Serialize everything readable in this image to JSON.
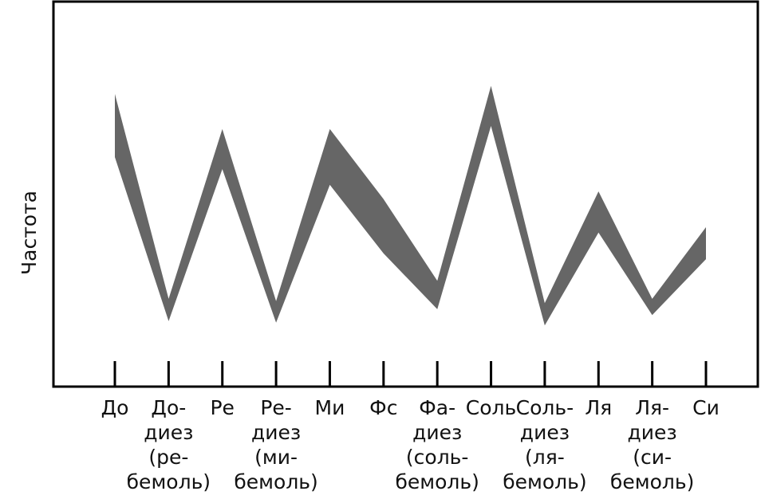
{
  "chart_data": {
    "type": "band",
    "y_label": "Частота",
    "categories": [
      [
        "До"
      ],
      [
        "До-",
        "диез",
        "(ре-",
        "бемоль)"
      ],
      [
        "Ре"
      ],
      [
        "Ре-",
        "диез",
        "(ми-",
        "бемоль)"
      ],
      [
        "Ми"
      ],
      [
        "Фс"
      ],
      [
        "Фа-",
        "диез",
        "(соль-",
        "бемоль)"
      ],
      [
        "Соль"
      ],
      [
        "Соль-",
        "диез",
        "(ля-",
        "бемоль)"
      ],
      [
        "Ля"
      ],
      [
        "Ля-",
        "диез",
        "(си-",
        "бемоль)"
      ],
      [
        "Си"
      ]
    ],
    "series": [
      {
        "color": "#666666",
        "values": [
          76.0,
          22.8,
          66.9,
          22.2,
          66.9,
          48.7,
          27.5,
          78.1,
          21.7,
          50.7,
          22.8,
          41.4
        ]
      },
      {
        "color": "#666666",
        "values": [
          59.6,
          17.0,
          56.5,
          16.6,
          52.4,
          34.6,
          20.1,
          67.7,
          15.9,
          40.0,
          18.6,
          33.1
        ]
      }
    ],
    "ylim": [
      0,
      100
    ]
  }
}
